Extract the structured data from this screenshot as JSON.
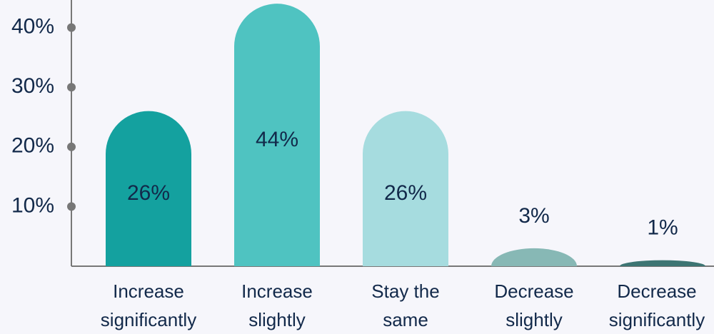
{
  "chart_data": {
    "type": "bar",
    "categories": [
      [
        "Increase",
        "significantly"
      ],
      [
        "Increase",
        "slightly"
      ],
      [
        "Stay the",
        "same"
      ],
      [
        "Decrease",
        "slightly"
      ],
      [
        "Decrease",
        "significantly"
      ]
    ],
    "values": [
      26,
      44,
      26,
      3,
      1
    ],
    "value_labels": [
      "26%",
      "44%",
      "26%",
      "3%",
      "1%"
    ],
    "colors": [
      "#14a19f",
      "#4fc3c1",
      "#a6dcdf",
      "#87b8b5",
      "#3d7573"
    ],
    "ylim": [
      0,
      44.5
    ],
    "yticks": [
      {
        "value": 10,
        "label": "10%"
      },
      {
        "value": 20,
        "label": "20%"
      },
      {
        "value": 30,
        "label": "30%"
      },
      {
        "value": 40,
        "label": "40%"
      }
    ]
  }
}
